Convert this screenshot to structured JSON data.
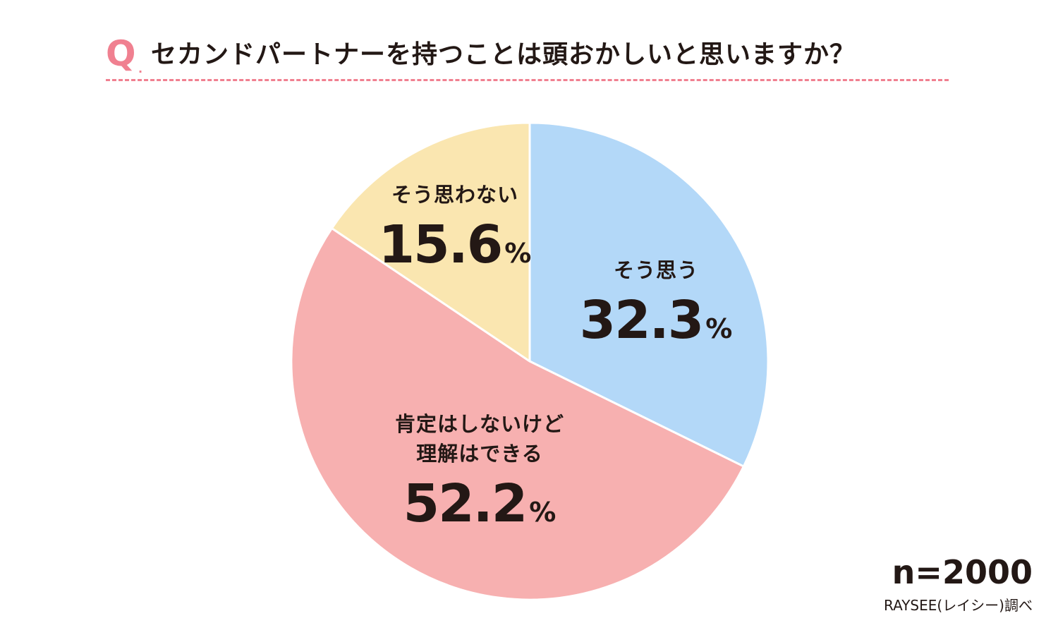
{
  "header": {
    "q_mark": "Q",
    "q_dot": ".",
    "question": "セカンドパートナーを持つことは頭おかしいと思いますか？"
  },
  "chart_data": {
    "type": "pie",
    "title": "セカンドパートナーを持つことは頭おかしいと思いますか？",
    "unit": "%",
    "start_angle_deg": 0,
    "direction": "clockwise",
    "slices": [
      {
        "name_lines": [
          "そう思う"
        ],
        "value": 32.3,
        "value_label": "32.3",
        "color": "#b3d8f8"
      },
      {
        "name_lines": [
          "肯定はしないけど",
          "理解はできる"
        ],
        "value": 52.2,
        "value_label": "52.2",
        "color": "#f7b0b0"
      },
      {
        "name_lines": [
          "そう思わない"
        ],
        "value": 15.6,
        "value_label": "15.6",
        "color": "#fae6b0"
      }
    ],
    "edge_color": "#ffffff"
  },
  "footer": {
    "n": "n=2000",
    "source": "RAYSEE(レイシー)調べ"
  }
}
